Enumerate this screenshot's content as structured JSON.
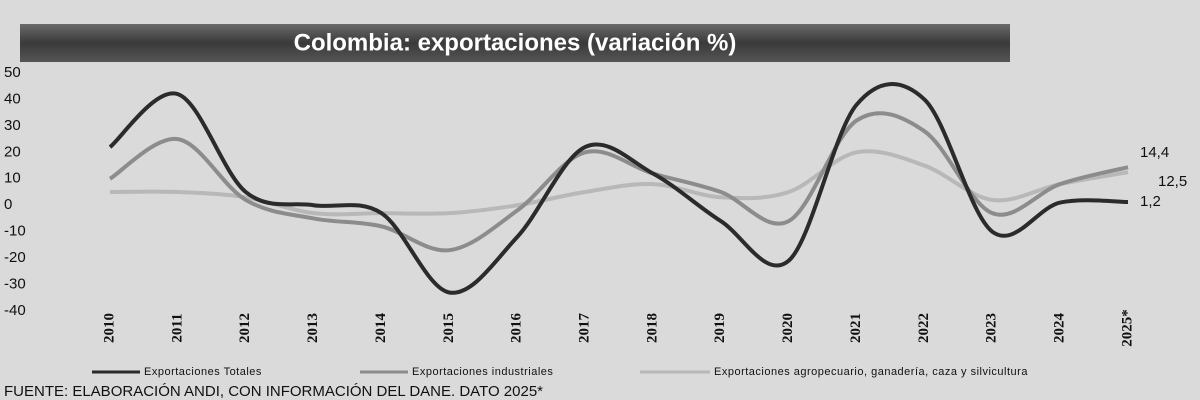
{
  "chart_data": {
    "type": "line",
    "title": "Colombia: exportaciones (variación %)",
    "categories": [
      "2010",
      "2011",
      "2012",
      "2013",
      "2014",
      "2015",
      "2016",
      "2017",
      "2018",
      "2019",
      "2020",
      "2021",
      "2022",
      "2023",
      "2024",
      "2025*"
    ],
    "series": [
      {
        "name": "Exportaciones Totales",
        "color": "#2b2b2b",
        "values": [
          22,
          42,
          5,
          0,
          -3,
          -33,
          -12,
          22,
          12,
          -6,
          -21,
          38,
          40,
          -10,
          1,
          1.2
        ],
        "value_labels": [
          null,
          null,
          null,
          null,
          null,
          null,
          null,
          null,
          null,
          null,
          null,
          null,
          null,
          null,
          null,
          "1,2"
        ]
      },
      {
        "name": "Exportaciones industriales",
        "color": "#8c8c8c",
        "values": [
          10,
          25,
          2,
          -5,
          -8,
          -17,
          -2,
          20,
          12,
          5,
          -6,
          32,
          28,
          -3,
          8,
          14.4
        ],
        "value_labels": [
          null,
          null,
          null,
          null,
          null,
          null,
          null,
          null,
          null,
          null,
          null,
          null,
          null,
          null,
          null,
          "14,4"
        ]
      },
      {
        "name": "Exportaciones agropecuario, ganadería, caza y silvicultura",
        "color": "#b8b8b8",
        "values": [
          5,
          5,
          3,
          -3,
          -3,
          -3,
          0,
          5,
          8,
          3,
          5,
          20,
          15,
          2,
          8,
          12.5
        ],
        "value_labels": [
          null,
          null,
          null,
          null,
          null,
          null,
          null,
          null,
          null,
          null,
          null,
          null,
          null,
          null,
          null,
          "12,5"
        ]
      }
    ],
    "ylim": [
      -40,
      50
    ],
    "yticks": [
      -40,
      -30,
      -20,
      -10,
      0,
      10,
      20,
      30,
      40,
      50
    ],
    "grid": false,
    "legend": "bottom",
    "source": "FUENTE: ELABORACIÓN ANDI, CON INFORMACIÓN DEL DANE. DATO 2025*"
  }
}
